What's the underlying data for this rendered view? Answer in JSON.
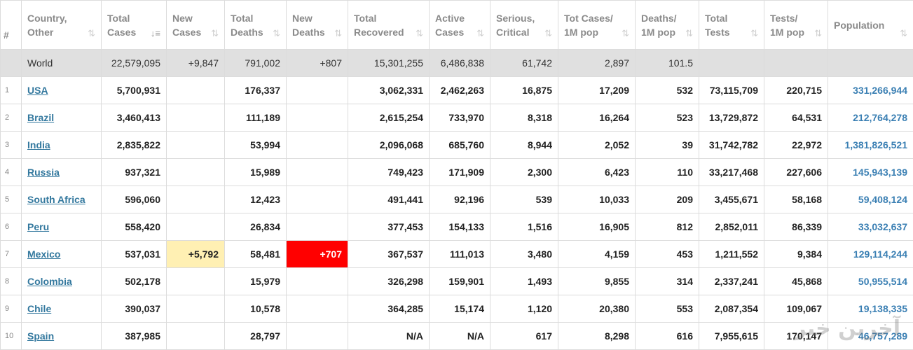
{
  "columns": [
    {
      "key": "rank",
      "line1": "#",
      "line2": ""
    },
    {
      "key": "country",
      "line1": "Country,",
      "line2": "Other"
    },
    {
      "key": "total_cases",
      "line1": "Total",
      "line2": "Cases"
    },
    {
      "key": "new_cases",
      "line1": "New",
      "line2": "Cases"
    },
    {
      "key": "total_deaths",
      "line1": "Total",
      "line2": "Deaths"
    },
    {
      "key": "new_deaths",
      "line1": "New",
      "line2": "Deaths"
    },
    {
      "key": "total_recovered",
      "line1": "Total",
      "line2": "Recovered"
    },
    {
      "key": "active_cases",
      "line1": "Active",
      "line2": "Cases"
    },
    {
      "key": "serious_critical",
      "line1": "Serious,",
      "line2": "Critical"
    },
    {
      "key": "tot_cases_1m",
      "line1": "Tot Cases/",
      "line2": "1M pop"
    },
    {
      "key": "deaths_1m",
      "line1": "Deaths/",
      "line2": "1M pop"
    },
    {
      "key": "total_tests",
      "line1": "Total",
      "line2": "Tests"
    },
    {
      "key": "tests_1m",
      "line1": "Tests/",
      "line2": "1M pop"
    },
    {
      "key": "population",
      "line1": "Population",
      "line2": ""
    }
  ],
  "sort_icon": "sort-arrows-icon",
  "active_sort_column": "total_cases",
  "world": {
    "country": "World",
    "total_cases": "22,579,095",
    "new_cases": "+9,847",
    "total_deaths": "791,002",
    "new_deaths": "+807",
    "total_recovered": "15,301,255",
    "active_cases": "6,486,838",
    "serious_critical": "61,742",
    "tot_cases_1m": "2,897",
    "deaths_1m": "101.5",
    "total_tests": "",
    "tests_1m": "",
    "population": ""
  },
  "rows": [
    {
      "rank": "1",
      "country": "USA",
      "total_cases": "5,700,931",
      "new_cases": "",
      "total_deaths": "176,337",
      "new_deaths": "",
      "total_recovered": "3,062,331",
      "active_cases": "2,462,263",
      "serious_critical": "16,875",
      "tot_cases_1m": "17,209",
      "deaths_1m": "532",
      "total_tests": "73,115,709",
      "tests_1m": "220,715",
      "population": "331,266,944"
    },
    {
      "rank": "2",
      "country": "Brazil",
      "total_cases": "3,460,413",
      "new_cases": "",
      "total_deaths": "111,189",
      "new_deaths": "",
      "total_recovered": "2,615,254",
      "active_cases": "733,970",
      "serious_critical": "8,318",
      "tot_cases_1m": "16,264",
      "deaths_1m": "523",
      "total_tests": "13,729,872",
      "tests_1m": "64,531",
      "population": "212,764,278"
    },
    {
      "rank": "3",
      "country": "India",
      "total_cases": "2,835,822",
      "new_cases": "",
      "total_deaths": "53,994",
      "new_deaths": "",
      "total_recovered": "2,096,068",
      "active_cases": "685,760",
      "serious_critical": "8,944",
      "tot_cases_1m": "2,052",
      "deaths_1m": "39",
      "total_tests": "31,742,782",
      "tests_1m": "22,972",
      "population": "1,381,826,521"
    },
    {
      "rank": "4",
      "country": "Russia",
      "total_cases": "937,321",
      "new_cases": "",
      "total_deaths": "15,989",
      "new_deaths": "",
      "total_recovered": "749,423",
      "active_cases": "171,909",
      "serious_critical": "2,300",
      "tot_cases_1m": "6,423",
      "deaths_1m": "110",
      "total_tests": "33,217,468",
      "tests_1m": "227,606",
      "population": "145,943,139"
    },
    {
      "rank": "5",
      "country": "South Africa",
      "total_cases": "596,060",
      "new_cases": "",
      "total_deaths": "12,423",
      "new_deaths": "",
      "total_recovered": "491,441",
      "active_cases": "92,196",
      "serious_critical": "539",
      "tot_cases_1m": "10,033",
      "deaths_1m": "209",
      "total_tests": "3,455,671",
      "tests_1m": "58,168",
      "population": "59,408,124"
    },
    {
      "rank": "6",
      "country": "Peru",
      "total_cases": "558,420",
      "new_cases": "",
      "total_deaths": "26,834",
      "new_deaths": "",
      "total_recovered": "377,453",
      "active_cases": "154,133",
      "serious_critical": "1,516",
      "tot_cases_1m": "16,905",
      "deaths_1m": "812",
      "total_tests": "2,852,011",
      "tests_1m": "86,339",
      "population": "33,032,637"
    },
    {
      "rank": "7",
      "country": "Mexico",
      "total_cases": "537,031",
      "new_cases": "+5,792",
      "total_deaths": "58,481",
      "new_deaths": "+707",
      "total_recovered": "367,537",
      "active_cases": "111,013",
      "serious_critical": "3,480",
      "tot_cases_1m": "4,159",
      "deaths_1m": "453",
      "total_tests": "1,211,552",
      "tests_1m": "9,384",
      "population": "129,114,244"
    },
    {
      "rank": "8",
      "country": "Colombia",
      "total_cases": "502,178",
      "new_cases": "",
      "total_deaths": "15,979",
      "new_deaths": "",
      "total_recovered": "326,298",
      "active_cases": "159,901",
      "serious_critical": "1,493",
      "tot_cases_1m": "9,855",
      "deaths_1m": "314",
      "total_tests": "2,337,241",
      "tests_1m": "45,868",
      "population": "50,955,514"
    },
    {
      "rank": "9",
      "country": "Chile",
      "total_cases": "390,037",
      "new_cases": "",
      "total_deaths": "10,578",
      "new_deaths": "",
      "total_recovered": "364,285",
      "active_cases": "15,174",
      "serious_critical": "1,120",
      "tot_cases_1m": "20,380",
      "deaths_1m": "553",
      "total_tests": "2,087,354",
      "tests_1m": "109,067",
      "population": "19,138,335"
    },
    {
      "rank": "10",
      "country": "Spain",
      "total_cases": "387,985",
      "new_cases": "",
      "total_deaths": "28,797",
      "new_deaths": "",
      "total_recovered": "N/A",
      "active_cases": "N/A",
      "serious_critical": "617",
      "tot_cases_1m": "8,298",
      "deaths_1m": "616",
      "total_tests": "7,955,615",
      "tests_1m": "170,147",
      "population": "46,757,289"
    }
  ],
  "colors": {
    "link": "#33789e",
    "population": "#3a7fb3",
    "world_row_bg": "#e0e0e0",
    "new_cases_highlight": "#fff0b3",
    "new_deaths_highlight": "#ff0000"
  },
  "watermark_text": "آخرین خبر"
}
